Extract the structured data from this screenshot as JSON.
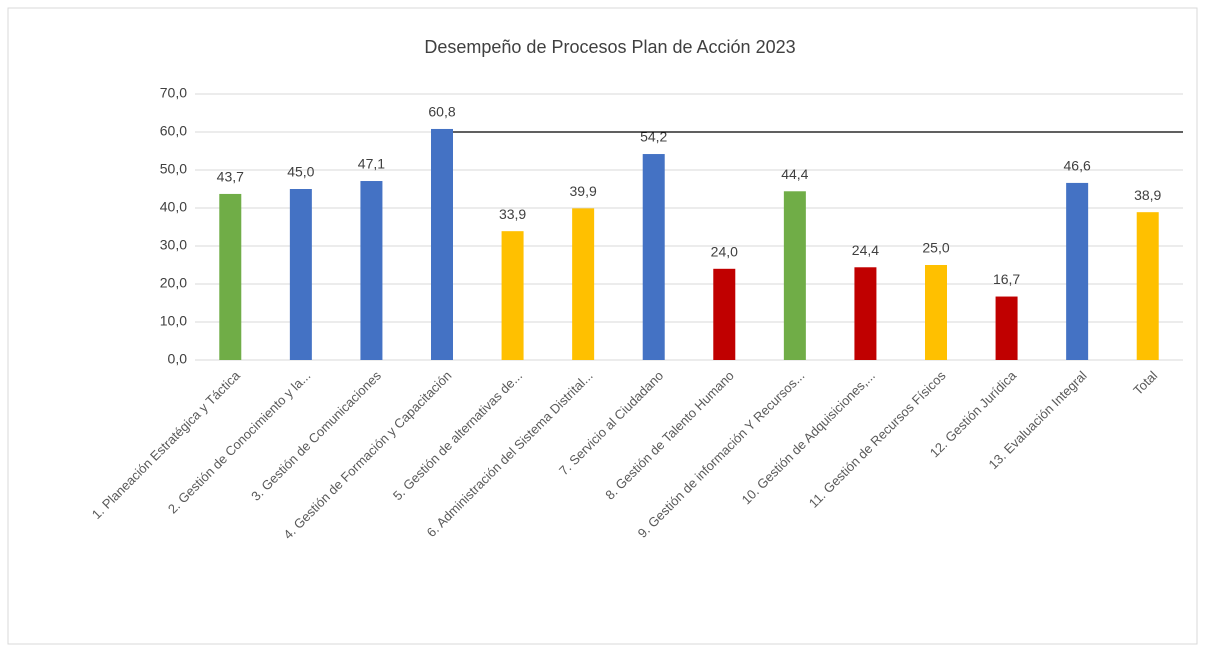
{
  "chart_data": {
    "type": "bar",
    "title": "Desempeño de Procesos Plan de Acción 2023",
    "categories": [
      "1. Planeación Estratégica y Táctica",
      "2. Gestión de Conocimiento y la...",
      "3. Gestión de Comunicaciones",
      "4. Gestión de Formación y Capacitación",
      "5. Gestión de alternativas de...",
      "6. Administración del Sistema Distrital...",
      "7. Servicio al Ciudadano",
      "8. Gestión de Talento Humano",
      "9. Gestión de información Y Recursos...",
      "10. Gestión de Adquisiciones,...",
      "11. Gestión de Recursos Físicos",
      "12. Gestión Jurídica",
      "13. Evaluación Integral",
      "Total"
    ],
    "values": [
      43.7,
      45.0,
      47.1,
      60.8,
      33.9,
      39.9,
      54.2,
      24.0,
      44.4,
      24.4,
      25.0,
      16.7,
      46.6,
      38.9
    ],
    "value_labels": [
      "43,7",
      "45,0",
      "47,1",
      "60,8",
      "33,9",
      "39,9",
      "54,2",
      "24,0",
      "44,4",
      "24,4",
      "25,0",
      "16,7",
      "46,6",
      "38,9"
    ],
    "colors": [
      "#70ad47",
      "#4472c4",
      "#4472c4",
      "#4472c4",
      "#ffc000",
      "#ffc000",
      "#4472c4",
      "#c00000",
      "#70ad47",
      "#c00000",
      "#ffc000",
      "#c00000",
      "#4472c4",
      "#ffc000"
    ],
    "ylim": [
      0,
      70
    ],
    "yticks": [
      {
        "value": 0,
        "label": "0,0"
      },
      {
        "value": 10,
        "label": "10,0"
      },
      {
        "value": 20,
        "label": "20,0"
      },
      {
        "value": 30,
        "label": "30,0"
      },
      {
        "value": 40,
        "label": "40,0"
      },
      {
        "value": 50,
        "label": "50,0"
      },
      {
        "value": 60,
        "label": "60,0"
      },
      {
        "value": 70,
        "label": "70,0"
      }
    ],
    "grid": true,
    "reference_line": {
      "value": 60,
      "color": "#000000"
    }
  }
}
